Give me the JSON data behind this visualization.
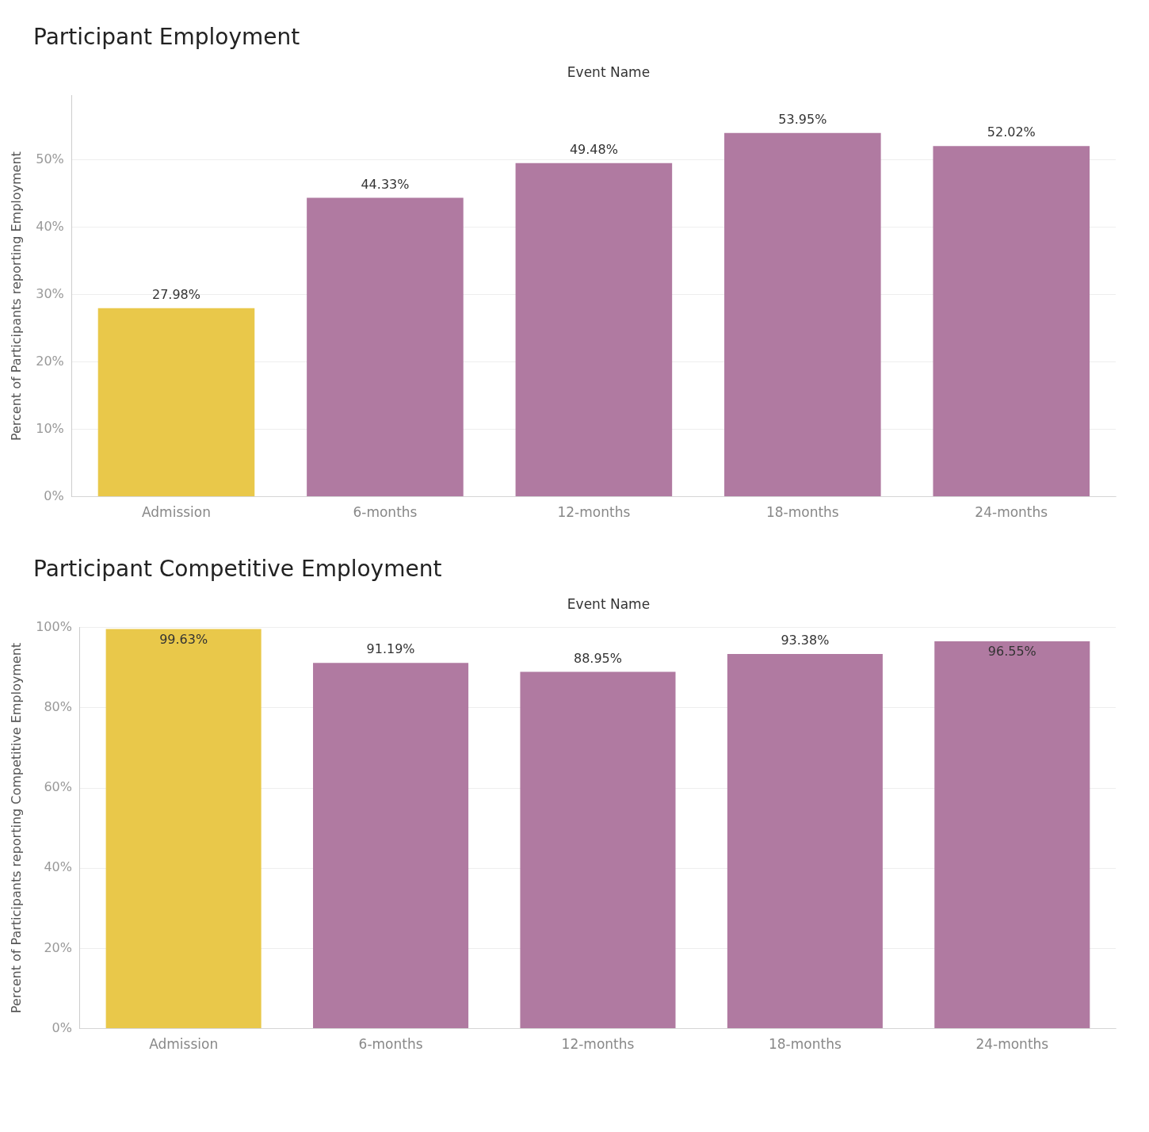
{
  "chart_data": [
    {
      "type": "bar",
      "title": "Participant Employment",
      "xlabel": "Event Name",
      "ylabel": "Percent of Participants reporting Employment",
      "categories": [
        "Admission",
        "6-months",
        "12-months",
        "18-months",
        "24-months"
      ],
      "values": [
        27.98,
        44.33,
        49.48,
        53.95,
        52.02
      ],
      "colors": [
        "#e9c84a",
        "#b07aa1",
        "#b07aa1",
        "#b07aa1",
        "#b07aa1"
      ],
      "value_labels": [
        "27.98%",
        "44.33%",
        "49.48%",
        "53.95%",
        "52.02%"
      ],
      "ylim": [
        0,
        59.5
      ],
      "yticks": [
        {
          "value": 0,
          "label": "0%"
        },
        {
          "value": 10,
          "label": "10%"
        },
        {
          "value": 20,
          "label": "20%"
        },
        {
          "value": 30,
          "label": "30%"
        },
        {
          "value": 40,
          "label": "40%"
        },
        {
          "value": 50,
          "label": "50%"
        }
      ],
      "grid": "y",
      "legend": false
    },
    {
      "type": "bar",
      "title": "Participant Competitive Employment",
      "xlabel": "Event Name",
      "ylabel": "Percent of Participants reporting Competitive Employment",
      "categories": [
        "Admission",
        "6-months",
        "12-months",
        "18-months",
        "24-months"
      ],
      "values": [
        99.63,
        91.19,
        88.95,
        93.38,
        96.55
      ],
      "colors": [
        "#e9c84a",
        "#b07aa1",
        "#b07aa1",
        "#b07aa1",
        "#b07aa1"
      ],
      "value_labels": [
        "99.63%",
        "91.19%",
        "88.95%",
        "93.38%",
        "96.55%"
      ],
      "ylim": [
        0,
        100
      ],
      "yticks": [
        {
          "value": 0,
          "label": "0%"
        },
        {
          "value": 20,
          "label": "20%"
        },
        {
          "value": 40,
          "label": "40%"
        },
        {
          "value": 60,
          "label": "60%"
        },
        {
          "value": 80,
          "label": "80%"
        },
        {
          "value": 100,
          "label": "100%"
        }
      ],
      "grid": "y",
      "legend": false
    }
  ]
}
